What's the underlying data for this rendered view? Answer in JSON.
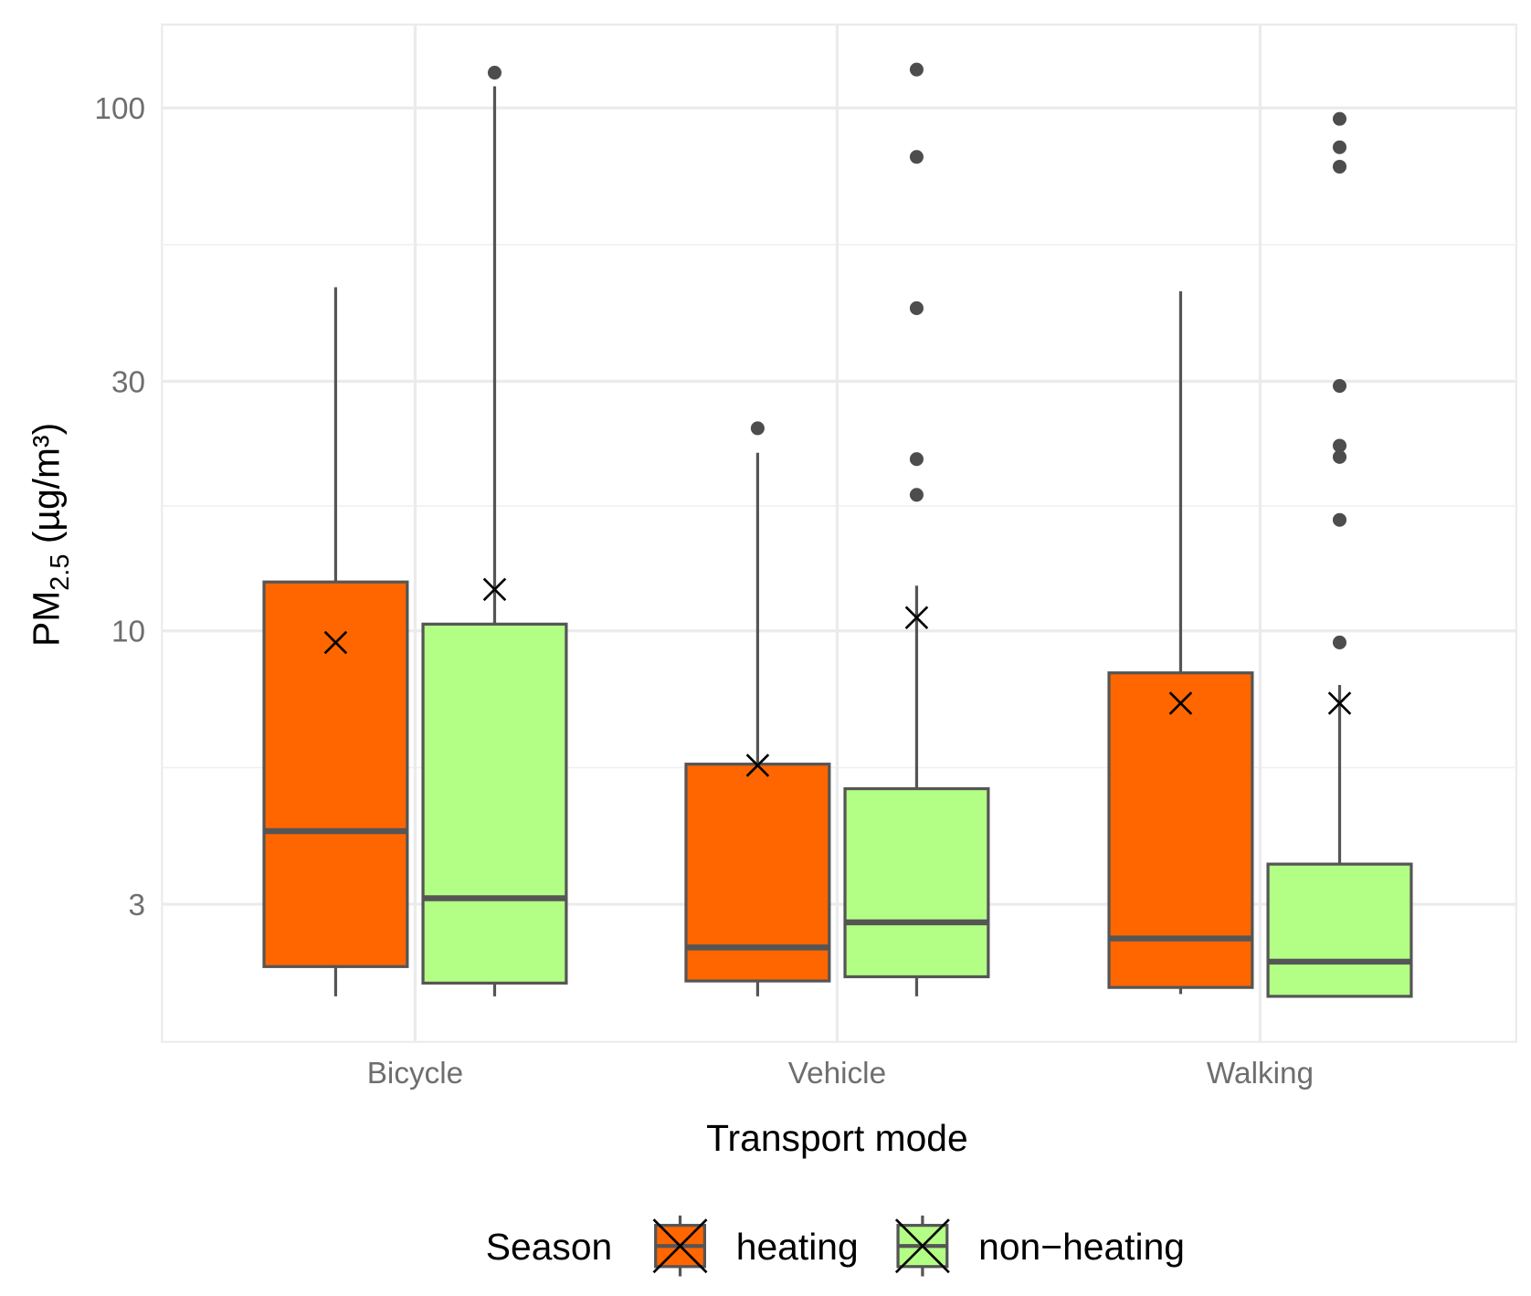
{
  "chart_data": {
    "type": "boxplot",
    "title": "",
    "xlabel": "Transport mode",
    "ylabel": "PM",
    "ylabel_sub": "2.5",
    "ylabel_unit": " (µg/m³)",
    "y_scale": "log10",
    "ylim": [
      1.85,
      130
    ],
    "y_ticks": [
      3,
      10,
      30,
      100
    ],
    "y_tick_labels": [
      "3",
      "10",
      "30",
      "100"
    ],
    "grid": true,
    "categories": [
      "Bicycle",
      "Vehicle",
      "Walking"
    ],
    "legend": {
      "title": "Season",
      "position": "bottom",
      "entries": [
        "heating",
        "non−heating"
      ]
    },
    "colors": {
      "heating": "#FF6600",
      "non-heating": "#B3FF85",
      "outline": "#555555"
    },
    "series": [
      {
        "name": "heating",
        "boxes": [
          {
            "category": "Bicycle",
            "whisker_low": 2.0,
            "q1": 2.28,
            "median": 4.14,
            "q3": 12.4,
            "whisker_high": 45.4,
            "mean": 9.5,
            "outliers": []
          },
          {
            "category": "Vehicle",
            "whisker_low": 2.0,
            "q1": 2.14,
            "median": 2.48,
            "q3": 5.56,
            "whisker_high": 21.9,
            "mean": 5.53,
            "outliers": [
              24.4
            ]
          },
          {
            "category": "Walking",
            "whisker_low": 2.02,
            "q1": 2.08,
            "median": 2.58,
            "q3": 8.31,
            "whisker_high": 44.6,
            "mean": 7.27,
            "outliers": []
          }
        ]
      },
      {
        "name": "non-heating",
        "boxes": [
          {
            "category": "Bicycle",
            "whisker_low": 2.0,
            "q1": 2.12,
            "median": 3.08,
            "q3": 10.3,
            "whisker_high": 110,
            "mean": 12.0,
            "outliers": [
              116.8
            ]
          },
          {
            "category": "Vehicle",
            "whisker_low": 2.0,
            "q1": 2.18,
            "median": 2.77,
            "q3": 4.99,
            "whisker_high": 12.2,
            "mean": 10.6,
            "outliers": [
              118.4,
              80.6,
              41.4,
              21.3,
              18.2
            ]
          },
          {
            "category": "Walking",
            "whisker_low": 2.0,
            "q1": 2.0,
            "median": 2.33,
            "q3": 3.58,
            "whisker_high": 7.88,
            "mean": 7.27,
            "outliers": [
              95.3,
              84.1,
              77.2,
              29.4,
              22.6,
              21.5,
              16.3,
              9.5
            ]
          }
        ]
      }
    ]
  }
}
